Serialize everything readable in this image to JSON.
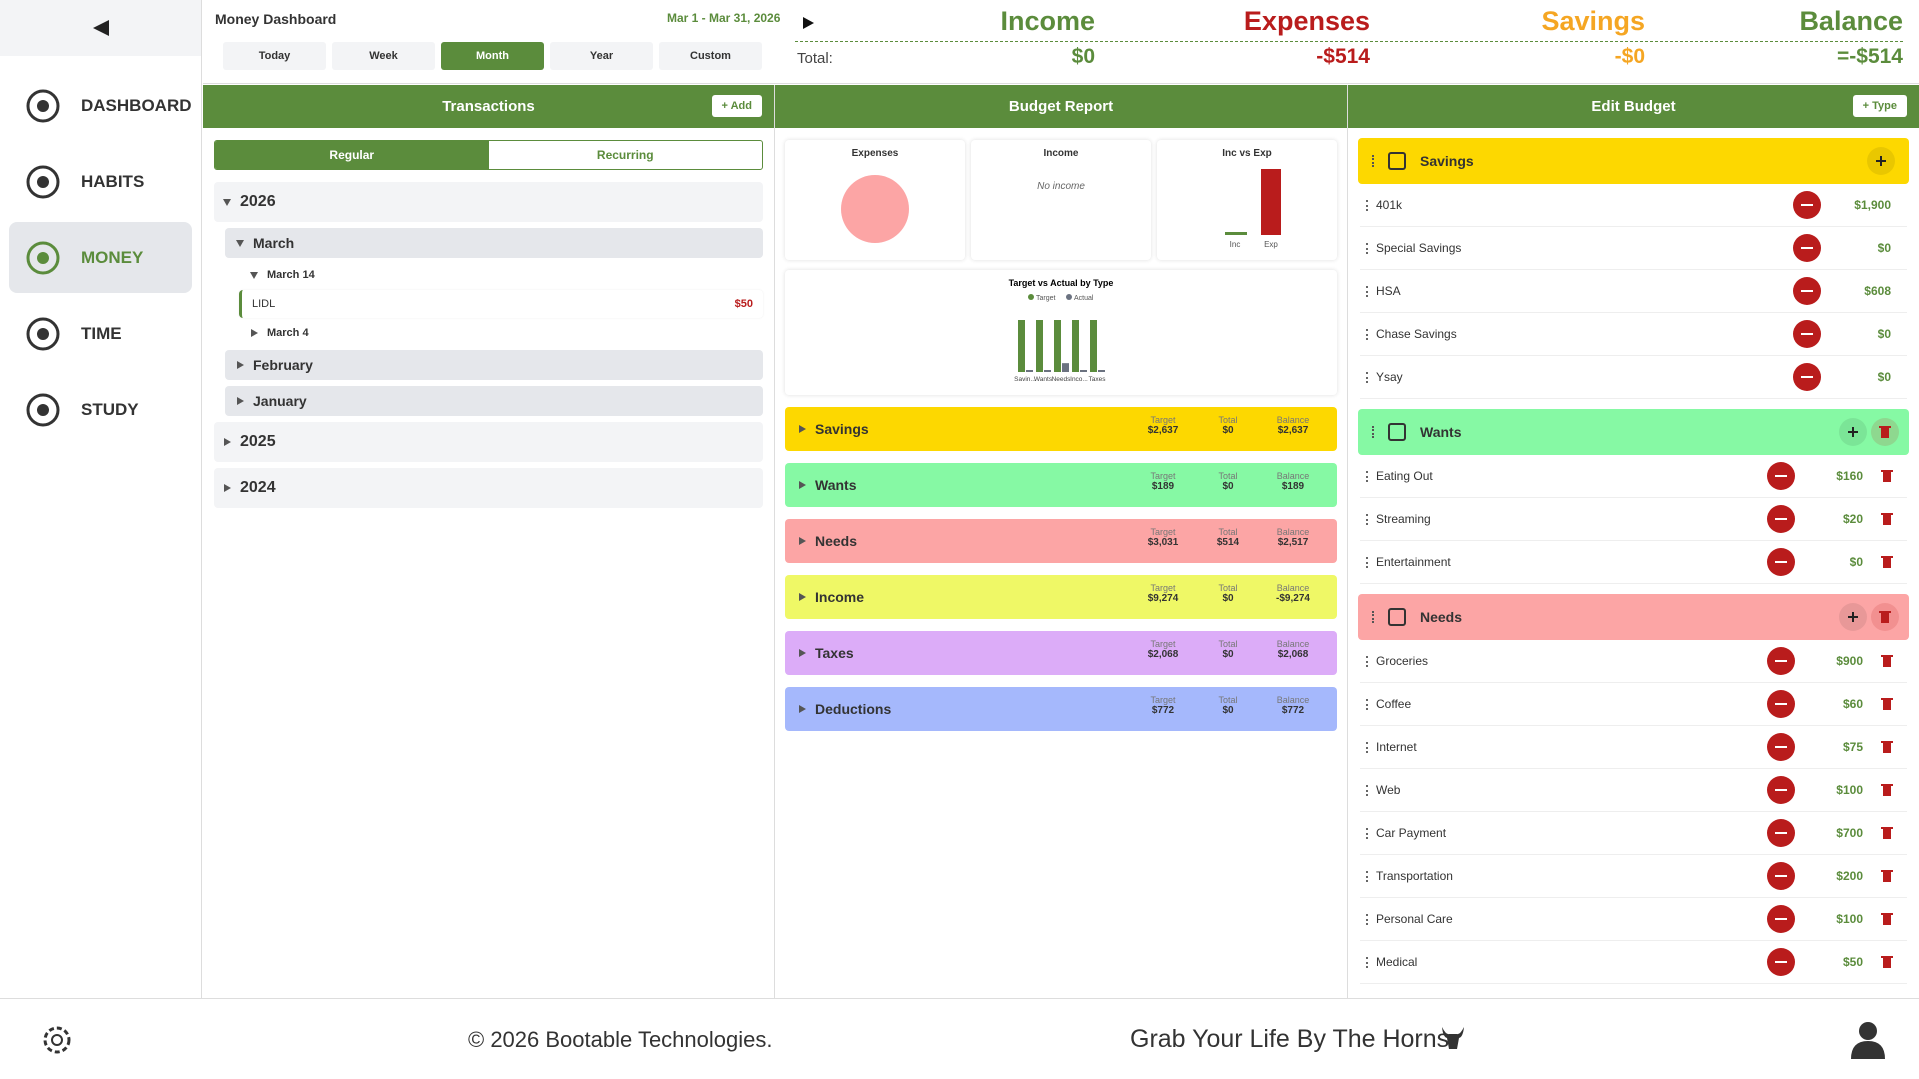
{
  "sidebar": {
    "nav": [
      {
        "label": "DASHBOARD",
        "active": false
      },
      {
        "label": "HABITS",
        "active": false
      },
      {
        "label": "MONEY",
        "active": true
      },
      {
        "label": "TIME",
        "active": false
      },
      {
        "label": "STUDY",
        "active": false
      }
    ]
  },
  "header": {
    "title": "Money Dashboard",
    "date_range": "Mar 1 - Mar 31, 2026",
    "periods": [
      {
        "label": "Today",
        "active": false
      },
      {
        "label": "Week",
        "active": false
      },
      {
        "label": "Month",
        "active": true
      },
      {
        "label": "Year",
        "active": false
      },
      {
        "label": "Custom",
        "active": false
      }
    ],
    "summary": {
      "total_label": "Total:",
      "columns": [
        {
          "label": "Income",
          "value": "$0",
          "color": "#5b8c3c"
        },
        {
          "label": "Expenses",
          "value": "-$514",
          "color": "#b91c1c"
        },
        {
          "label": "Savings",
          "value": "-$0",
          "color": "#f5a623"
        },
        {
          "label": "Balance",
          "value": "=-$514",
          "color": "#5b8c3c"
        }
      ]
    }
  },
  "transactions": {
    "title": "Transactions",
    "add": "+ Add",
    "tabs": [
      {
        "label": "Regular",
        "active": true
      },
      {
        "label": "Recurring",
        "active": false
      }
    ],
    "years": [
      {
        "label": "2026",
        "open": true,
        "months": [
          {
            "label": "March",
            "open": true,
            "days": [
              {
                "label": "March 14",
                "open": true,
                "items": [
                  {
                    "name": "LIDL",
                    "amount": "$50"
                  }
                ]
              },
              {
                "label": "March 4",
                "open": false,
                "items": []
              }
            ]
          },
          {
            "label": "February",
            "open": false,
            "days": []
          },
          {
            "label": "January",
            "open": false,
            "days": []
          }
        ]
      },
      {
        "label": "2025",
        "open": false,
        "months": []
      },
      {
        "label": "2024",
        "open": false,
        "months": []
      }
    ]
  },
  "budget_report": {
    "title": "Budget Report",
    "cards": [
      {
        "title": "Expenses",
        "type": "pie",
        "values": [
          514
        ],
        "color": "#fca5a5"
      },
      {
        "title": "Income",
        "message": "No income"
      },
      {
        "title": "Inc vs Exp",
        "type": "bar",
        "categories": [
          "Inc",
          "Exp"
        ],
        "values": [
          0,
          514
        ],
        "colors": [
          "#5b8c3c",
          "#b91c1c"
        ]
      }
    ],
    "chart": {
      "type": "bar",
      "title": "Target vs Actual by Type",
      "categories": [
        "Savin...",
        "Wants",
        "Needs",
        "Inco...",
        "Taxes"
      ],
      "series": [
        {
          "name": "Target",
          "color": "#5b8c3c",
          "values": [
            100,
            100,
            100,
            100,
            100
          ]
        },
        {
          "name": "Actual",
          "color": "#6b7280",
          "values": [
            0,
            0,
            17,
            0,
            0
          ]
        }
      ]
    },
    "column_labels": [
      "Target",
      "Total",
      "Balance"
    ],
    "types": [
      {
        "name": "Savings",
        "color": "#fdd800",
        "target": "$2,637",
        "total": "$0",
        "balance": "$2,637"
      },
      {
        "name": "Wants",
        "color": "#86f9a4",
        "target": "$189",
        "total": "$0",
        "balance": "$189"
      },
      {
        "name": "Needs",
        "color": "#fca5a5",
        "target": "$3,031",
        "total": "$514",
        "balance": "$2,517"
      },
      {
        "name": "Income",
        "color": "#eff866",
        "target": "$9,274",
        "total": "$0",
        "balance": "-$9,274"
      },
      {
        "name": "Taxes",
        "color": "#dcacf8",
        "target": "$2,068",
        "total": "$0",
        "balance": "$2,068"
      },
      {
        "name": "Deductions",
        "color": "#a5b8fc",
        "target": "$772",
        "total": "$0",
        "balance": "$772"
      }
    ]
  },
  "edit_budget": {
    "title": "Edit Budget",
    "add": "+ Type",
    "groups": [
      {
        "name": "Savings",
        "color": "#fdd800",
        "deletable": false,
        "items": [
          {
            "name": "401k",
            "amount": "$1,900"
          },
          {
            "name": "Special Savings",
            "amount": "$0"
          },
          {
            "name": "HSA",
            "amount": "$608"
          },
          {
            "name": "Chase Savings",
            "amount": "$0"
          },
          {
            "name": "Ysay",
            "amount": "$0"
          }
        ]
      },
      {
        "name": "Wants",
        "color": "#86f9a4",
        "deletable": true,
        "items": [
          {
            "name": "Eating Out",
            "amount": "$160"
          },
          {
            "name": "Streaming",
            "amount": "$20"
          },
          {
            "name": "Entertainment",
            "amount": "$0"
          }
        ]
      },
      {
        "name": "Needs",
        "color": "#fca5a5",
        "deletable": true,
        "items": [
          {
            "name": "Groceries",
            "amount": "$900"
          },
          {
            "name": "Coffee",
            "amount": "$60"
          },
          {
            "name": "Internet",
            "amount": "$75"
          },
          {
            "name": "Web",
            "amount": "$100"
          },
          {
            "name": "Car Payment",
            "amount": "$700"
          },
          {
            "name": "Transportation",
            "amount": "$200"
          },
          {
            "name": "Personal Care",
            "amount": "$100"
          },
          {
            "name": "Medical",
            "amount": "$50"
          }
        ]
      }
    ]
  },
  "footer": {
    "copyright": "© 2026 Bootable Technologies.",
    "slogan": "Grab Your Life By The Horns."
  }
}
